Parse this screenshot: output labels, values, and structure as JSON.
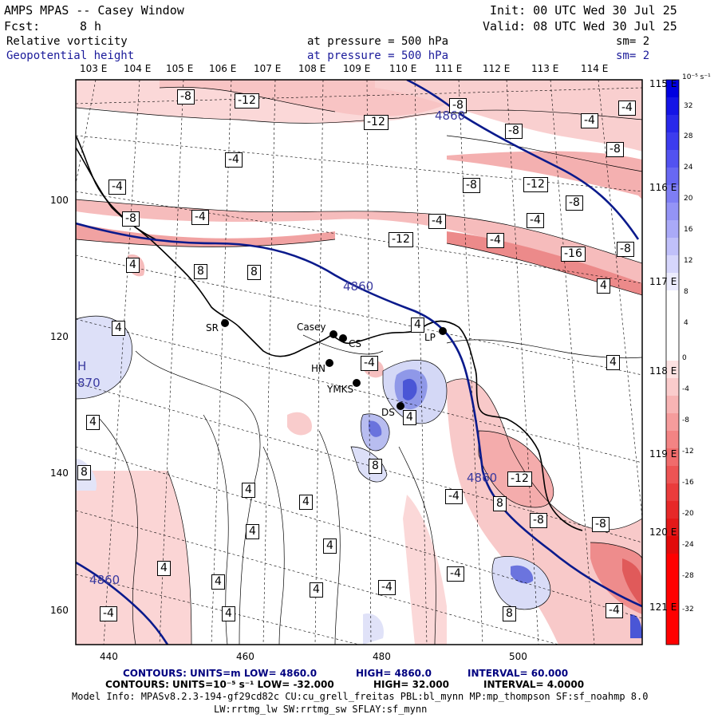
{
  "header": {
    "title": "AMPS MPAS -- Casey Window",
    "fcst_label": "Fcst:",
    "fcst_value": "8 h",
    "init": "Init: 00 UTC Wed 30 Jul 25",
    "valid": "Valid: 08 UTC Wed 30 Jul 25",
    "field1_name": "Relative vorticity",
    "field1_pressure": "at pressure =  500 hPa",
    "field1_sm": "sm= 2",
    "field2_name": "Geopotential height",
    "field2_pressure": "at pressure =  500 hPa",
    "field2_sm": "sm= 2"
  },
  "colors": {
    "height_contour": "#0a1a8c",
    "coast": "#000000",
    "pos_vort": "#2a2ad8",
    "neg_vort": "#e02020"
  },
  "top_lon_labels": [
    "103 E",
    "104 E",
    "105 E",
    "106 E",
    "107 E",
    "108 E",
    "109 E",
    "110 E",
    "111 E",
    "112 E",
    "113 E",
    "114 E"
  ],
  "right_lat_labels": [
    "115 E",
    "116 E",
    "117 E",
    "118 E",
    "119 E",
    "120 E",
    "121 E"
  ],
  "left_axis_labels": [
    "100",
    "120",
    "140",
    "160"
  ],
  "bottom_axis_labels": [
    "440",
    "460",
    "480",
    "500"
  ],
  "colorbar": {
    "units": "10⁻⁵ s⁻¹",
    "ticks": [
      "32",
      "28",
      "24",
      "20",
      "16",
      "12",
      "8",
      "4",
      "0",
      "-4",
      "-8",
      "-12",
      "-16",
      "-20",
      "-24",
      "-28",
      "-32"
    ]
  },
  "stations": [
    {
      "code": "SR"
    },
    {
      "code": "Casey"
    },
    {
      "code": "CS"
    },
    {
      "code": "LP"
    },
    {
      "code": "HN"
    },
    {
      "code": "YMKS"
    },
    {
      "code": "DS"
    }
  ],
  "contour_labels": [
    "-8",
    "-12",
    "-12",
    "-8",
    "-4",
    "-4",
    "-8",
    "-8",
    "-4",
    "-4",
    "-12",
    "-8",
    "-8",
    "-4",
    "-4",
    "-8",
    "-4",
    "-12",
    "-4",
    "-16",
    "-8",
    "4",
    "4",
    "8",
    "8",
    "4",
    "4",
    "-4",
    "4",
    "4",
    "4",
    "8",
    "8",
    "4",
    "4",
    "4",
    "4",
    "4",
    "4",
    "-4",
    "-4",
    "-12",
    "-4",
    "8",
    "-8",
    "-8",
    "-4",
    "4",
    "4",
    "8",
    "-4",
    "-4",
    "-4"
  ],
  "height_labels": [
    "4860",
    "4860",
    "4860",
    "4860"
  ],
  "extrema": {
    "symbol": "H",
    "value": "870"
  },
  "footer": {
    "line1_contours": "CONTOURS:  UNITS=m  LOW=  4860.0",
    "line1_high": "HIGH=  4860.0",
    "line1_interval": "INTERVAL=   60.000",
    "line2_contours": "CONTOURS:  UNITS=10⁻⁵ s⁻¹  LOW= -32.000",
    "line2_high": "HIGH=  32.000",
    "line2_interval": "INTERVAL=   4.0000",
    "model_info_1": "Model Info: MPASv8.2.3-194-gf29cd82c CU:cu_grell_freitas PBL:bl_mynn MP:mp_thompson SF:sf_noahmp 8.0",
    "model_info_2": "LW:rrtmg_lw SW:rrtmg_sw SFLAY:sf_mynn"
  }
}
